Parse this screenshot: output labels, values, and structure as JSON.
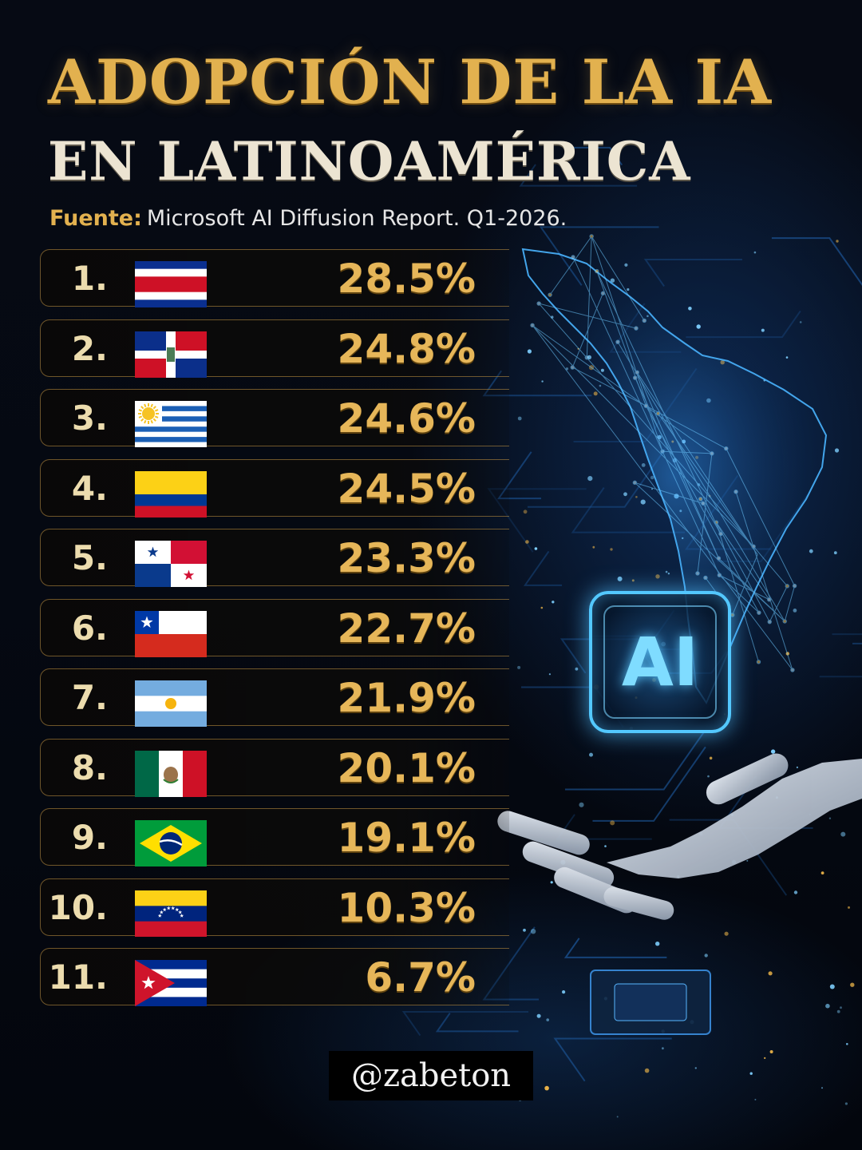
{
  "title_line1": "ADOPCIÓN DE LA IA",
  "title_line2": "EN LATINOAMÉRICA",
  "source_label": "Fuente:",
  "source_text": "Microsoft AI Diffusion Report. Q1-2026.",
  "badge_text": "AI",
  "handle": "@zabeton",
  "colors": {
    "title_gold": "#e2b14f",
    "title_cream": "#ece4d2",
    "value_gold": "#e6b659",
    "row_border": "#c49646",
    "ai_glow": "#53c8ff"
  },
  "chart_data": {
    "type": "table",
    "columns": [
      "rank",
      "flag",
      "value"
    ],
    "rows": [
      {
        "rank": "1.",
        "flag": "costa-rica-flag",
        "value": 28.5,
        "label": "28.5%"
      },
      {
        "rank": "2.",
        "flag": "dominican-republic-flag",
        "value": 24.8,
        "label": "24.8%"
      },
      {
        "rank": "3.",
        "flag": "uruguay-flag",
        "value": 24.6,
        "label": "24.6%"
      },
      {
        "rank": "4.",
        "flag": "colombia-flag",
        "value": 24.5,
        "label": "24.5%"
      },
      {
        "rank": "5.",
        "flag": "panama-flag",
        "value": 23.3,
        "label": "23.3%"
      },
      {
        "rank": "6.",
        "flag": "chile-flag",
        "value": 22.7,
        "label": "22.7%"
      },
      {
        "rank": "7.",
        "flag": "argentina-flag",
        "value": 21.9,
        "label": "21.9%"
      },
      {
        "rank": "8.",
        "flag": "mexico-flag",
        "value": 20.1,
        "label": "20.1%"
      },
      {
        "rank": "9.",
        "flag": "brazil-flag",
        "value": 19.1,
        "label": "19.1%"
      },
      {
        "rank": "10.",
        "flag": "venezuela-flag",
        "value": 10.3,
        "label": "10.3%"
      },
      {
        "rank": "11.",
        "flag": "cuba-flag",
        "value": 6.7,
        "label": "6.7%"
      }
    ]
  }
}
